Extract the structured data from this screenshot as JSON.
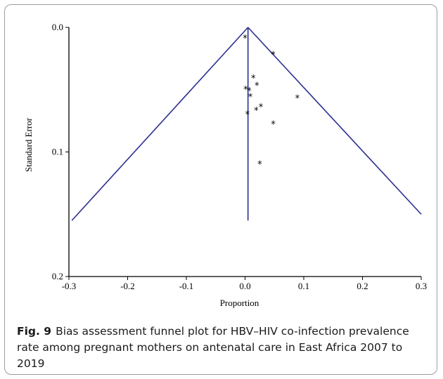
{
  "chart_data": {
    "type": "scatter",
    "subtype": "funnel",
    "xlabel": "Proportion",
    "ylabel": "Standard Error",
    "xlim": [
      -0.3,
      0.3
    ],
    "ylim": [
      0.2,
      0.0
    ],
    "y_reversed": true,
    "x_ticks": [
      "-0.3",
      "-0.2",
      "-0.1",
      "0.0",
      "0.1",
      "0.2",
      "0.3"
    ],
    "y_ticks": [
      "0.0",
      "0.1",
      "0.2"
    ],
    "point_marker": "*",
    "funnel_lines": {
      "apex": [
        0.005,
        0.0
      ],
      "left_end": [
        -0.295,
        0.155
      ],
      "right_end": [
        0.3,
        0.15
      ],
      "center_end": [
        0.005,
        0.155
      ]
    },
    "points": [
      {
        "x": 0.0,
        "y": 0.008
      },
      {
        "x": 0.048,
        "y": 0.021
      },
      {
        "x": 0.014,
        "y": 0.04
      },
      {
        "x": 0.02,
        "y": 0.046
      },
      {
        "x": 0.001,
        "y": 0.049
      },
      {
        "x": 0.007,
        "y": 0.05
      },
      {
        "x": 0.009,
        "y": 0.055
      },
      {
        "x": 0.089,
        "y": 0.056
      },
      {
        "x": 0.027,
        "y": 0.063
      },
      {
        "x": 0.019,
        "y": 0.066
      },
      {
        "x": 0.004,
        "y": 0.069
      },
      {
        "x": 0.048,
        "y": 0.077
      },
      {
        "x": 0.025,
        "y": 0.109
      }
    ],
    "colors": {
      "funnel": "#2b2f8f",
      "axes": "#000000",
      "points": "#000000"
    }
  },
  "caption": {
    "label": "Fig. 9",
    "text": "Bias assessment funnel plot for HBV–HIV co-infection prevalence rate among pregnant mothers on antenatal care in East Africa 2007 to 2019"
  }
}
